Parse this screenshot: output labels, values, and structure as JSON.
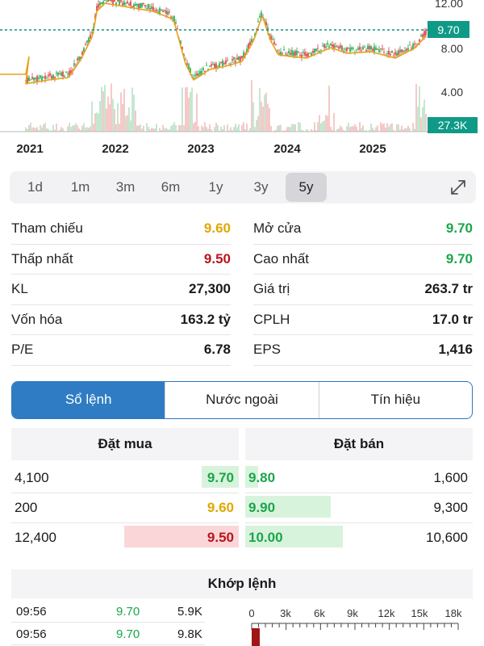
{
  "chart": {
    "price_labels": [
      "12.00",
      "8.00",
      "4.00"
    ],
    "current_price": "9.70",
    "current_volume": "27.3K",
    "year_labels": [
      "2021",
      "2022",
      "2023",
      "2024",
      "2025"
    ],
    "colors": {
      "up": "#1aa64b",
      "down": "#d93a3a",
      "ma": "#e8a01a",
      "badge": "#0f9a87",
      "ref_line": "#148f84"
    }
  },
  "timeframes": [
    "1d",
    "1m",
    "3m",
    "6m",
    "1y",
    "3y",
    "5y"
  ],
  "active_timeframe": "5y",
  "stats": {
    "ref_label": "Tham chiếu",
    "ref_value": "9.60",
    "open_label": "Mở cửa",
    "open_value": "9.70",
    "low_label": "Thấp nhất",
    "low_value": "9.50",
    "high_label": "Cao nhất",
    "high_value": "9.70",
    "vol_label": "KL",
    "vol_value": "27,300",
    "val_label": "Giá trị",
    "val_value": "263.7 tr",
    "cap_label": "Vốn hóa",
    "cap_value": "163.2 tỷ",
    "shares_label": "CPLH",
    "shares_value": "17.0 tr",
    "pe_label": "P/E",
    "pe_value": "6.78",
    "eps_label": "EPS",
    "eps_value": "1,416"
  },
  "colors": {
    "yellow": "#e0a800",
    "green": "#1aa64b",
    "red": "#b8151c"
  },
  "tabs": [
    "Sổ lệnh",
    "Nước ngoài",
    "Tín hiệu"
  ],
  "orderbook": {
    "buy_title": "Đặt mua",
    "sell_title": "Đặt bán",
    "buy": [
      {
        "volume": "4,100",
        "price": "9.70"
      },
      {
        "volume": "200",
        "price": "9.60"
      },
      {
        "volume": "12,400",
        "price": "9.50"
      }
    ],
    "sell": [
      {
        "price": "9.80",
        "volume": "1,600"
      },
      {
        "price": "9.90",
        "volume": "9,300"
      },
      {
        "price": "10.00",
        "volume": "10,600"
      }
    ]
  },
  "matched": {
    "title": "Khớp lệnh",
    "trades": [
      {
        "time": "09:56",
        "price": "9.70",
        "volume": "5.9K"
      },
      {
        "time": "09:56",
        "price": "9.70",
        "volume": "9.8K"
      }
    ],
    "axis_ticks": [
      "0",
      "3k",
      "6k",
      "9k",
      "12k",
      "15k",
      "18k"
    ]
  }
}
